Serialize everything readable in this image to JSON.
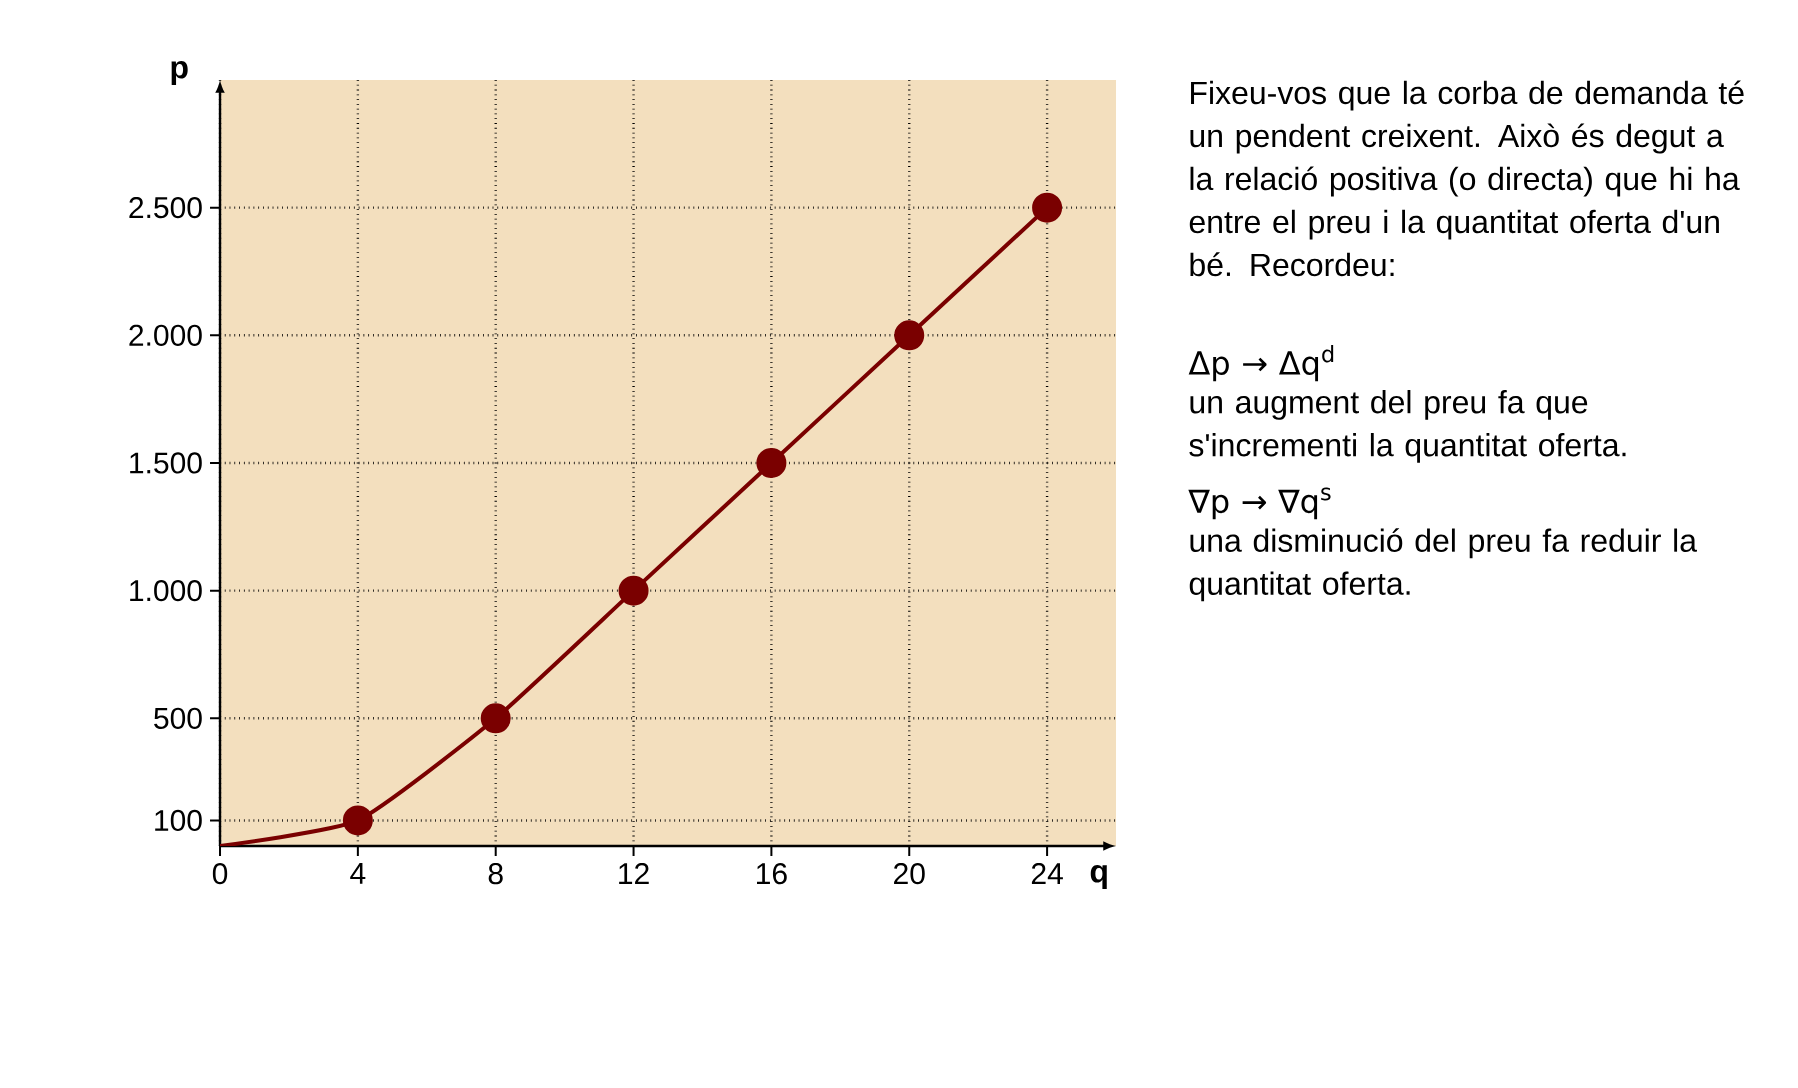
{
  "chart_data": {
    "type": "line",
    "xlabel": "q",
    "ylabel": "p",
    "x": [
      0,
      4,
      8,
      12,
      16,
      20,
      24
    ],
    "series": [
      {
        "color": "#7a0000",
        "values": [
          0,
          100,
          500,
          1000,
          1500,
          2000,
          2500
        ]
      }
    ],
    "marker": "circle",
    "line_style": "solid",
    "grid": true,
    "xlim": [
      0,
      26
    ],
    "ylim": [
      0,
      3000
    ],
    "xticks": [
      0,
      4,
      8,
      12,
      16,
      20,
      24
    ],
    "yticks": [
      100,
      500,
      {
        "value": 1000,
        "label": "1.000"
      },
      {
        "value": 1500,
        "label": "1.500"
      },
      {
        "value": 2000,
        "label": "2.000"
      },
      {
        "value": 2500,
        "label": "2.500"
      }
    ],
    "annotations": [
      "Fixeu-vos que la corba de demanda té un pendent creixent. Això és degut a la relació positiva (o directa) que hi ha entre el preu i la quantitat oferta d'un bé. Recordeu:",
      "Δp → Δq$^{d}$",
      "un augment del preu fa que s'incrementi la quantitat oferta.",
      "∇p → ∇q$^{s}$",
      "una disminució del preu fa reduir la quantitat oferta."
    ]
  }
}
